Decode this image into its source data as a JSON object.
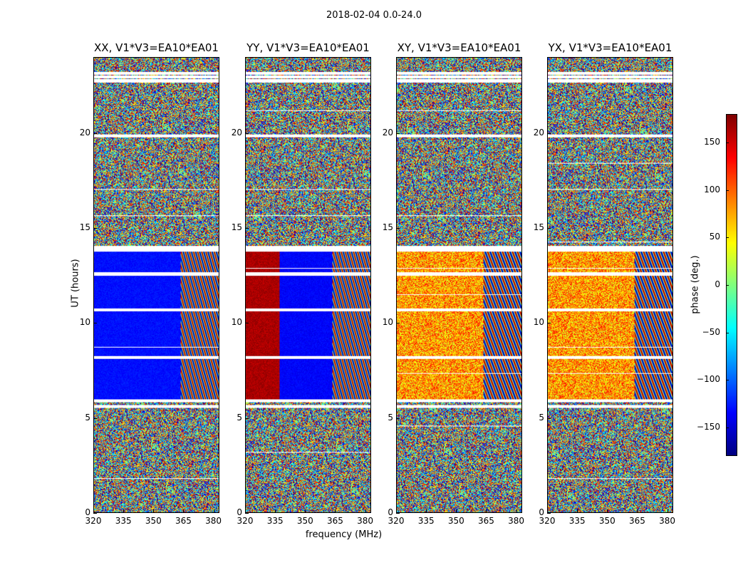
{
  "chart_data": {
    "type": "heatmap",
    "suptitle": "2018-02-04 0.0-24.0",
    "panels": [
      {
        "title": "XX, V1*V3=EA10*EA01",
        "phase_mode": "xx"
      },
      {
        "title": "YY, V1*V3=EA10*EA01",
        "phase_mode": "yy"
      },
      {
        "title": "XY, V1*V3=EA10*EA01",
        "phase_mode": "xy"
      },
      {
        "title": "YX, V1*V3=EA10*EA01",
        "phase_mode": "yx"
      }
    ],
    "xlabel": "frequency (MHz)",
    "ylabel": "UT (hours)",
    "xlim": [
      320,
      383
    ],
    "ylim": [
      0,
      24
    ],
    "xticks": [
      320,
      335,
      350,
      365,
      380
    ],
    "yticks": [
      0,
      5,
      10,
      15,
      20
    ],
    "colorbar": {
      "label": "phase (deg.)",
      "range": [
        -180,
        180
      ],
      "ticks": [
        150,
        100,
        50,
        0,
        -50,
        -100,
        -150
      ],
      "tick_labels": [
        "150",
        "100",
        "50",
        "0",
        "−50",
        "−100",
        "−150"
      ]
    },
    "structure": {
      "coherent_hours": [
        6.0,
        13.8
      ],
      "flagged_hours": [
        5.6,
        5.9,
        13.85,
        14.0,
        22.8,
        23.0,
        19.9,
        8.2,
        10.7,
        12.6,
        23.2
      ],
      "noisy_freq_start": 363.5,
      "xx_phase": -130,
      "yy_phase_low": 165,
      "yy_phase_split": 337,
      "yy_phase_high": -135,
      "cross_phase": 80
    }
  }
}
